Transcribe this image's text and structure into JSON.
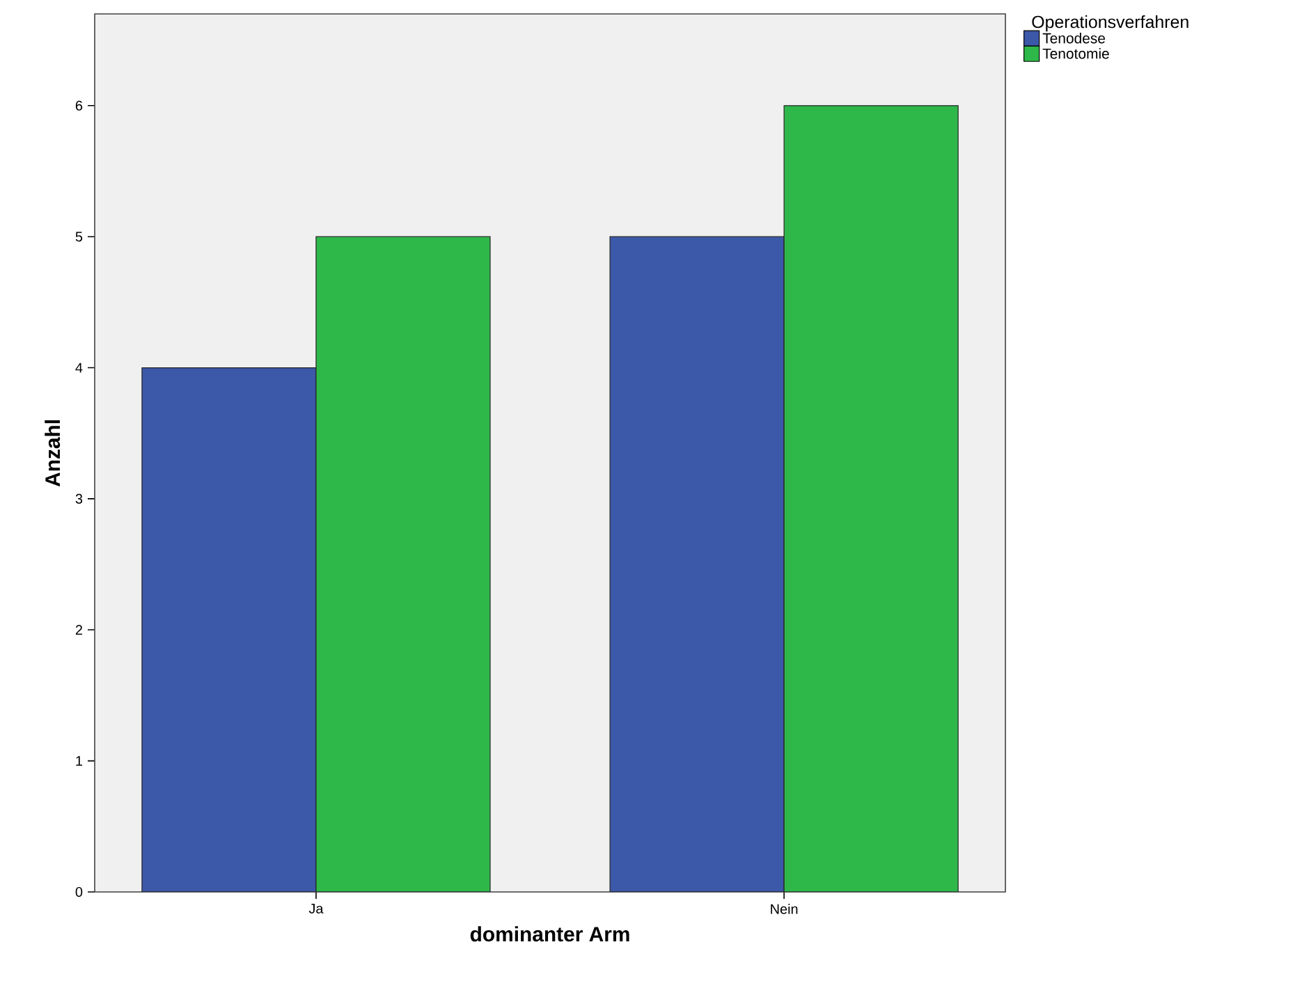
{
  "chart_data": {
    "type": "bar",
    "xlabel": "dominanter Arm",
    "ylabel": "Anzahl",
    "legend_title": "Operationsverfahren",
    "categories": [
      "Ja",
      "Nein"
    ],
    "series": [
      {
        "name": "Tenodese",
        "color": "#3c58a8",
        "values": [
          4,
          5
        ]
      },
      {
        "name": "Tenotomie",
        "color": "#2fb84a",
        "values": [
          5,
          6
        ]
      }
    ],
    "ylim": [
      0,
      6.7
    ],
    "yticks": [
      0,
      1,
      2,
      3,
      4,
      5,
      6
    ],
    "legend": "top right"
  }
}
